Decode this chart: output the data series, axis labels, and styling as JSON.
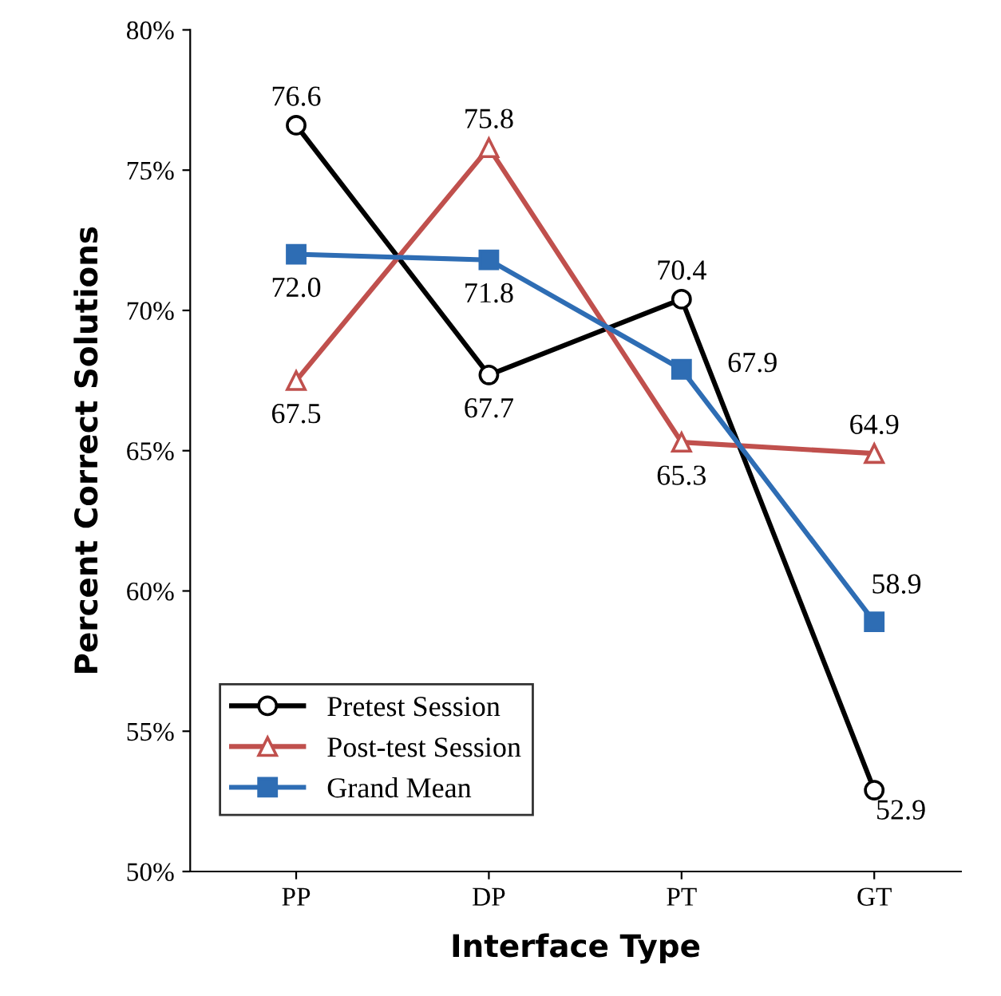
{
  "chart_data": {
    "type": "line",
    "xlabel": "Interface Type",
    "ylabel": "Percent Correct Solutions",
    "categories": [
      "PP",
      "DP",
      "PT",
      "GT"
    ],
    "series": [
      {
        "name": "Pretest Session",
        "color": "#000000",
        "marker": "circle",
        "values": [
          76.6,
          67.7,
          70.4,
          52.9
        ],
        "value_labels": [
          "76.6",
          "67.7",
          "70.4",
          "52.9"
        ]
      },
      {
        "name": "Post-test Session",
        "color": "#c0504d",
        "marker": "triangle",
        "values": [
          67.5,
          75.8,
          65.3,
          64.9
        ],
        "value_labels": [
          "67.5",
          "75.8",
          "65.3",
          "64.9"
        ]
      },
      {
        "name": "Grand Mean",
        "color": "#2e6db4",
        "marker": "square",
        "values": [
          72.0,
          71.8,
          67.9,
          58.9
        ],
        "value_labels": [
          "72.0",
          "71.8",
          "67.9",
          "58.9"
        ]
      }
    ],
    "ylim": [
      50,
      80
    ],
    "yticks": [
      {
        "value": 50,
        "label": "50%"
      },
      {
        "value": 55,
        "label": "55%"
      },
      {
        "value": 60,
        "label": "60%"
      },
      {
        "value": 65,
        "label": "65%"
      },
      {
        "value": 70,
        "label": "70%"
      },
      {
        "value": 75,
        "label": "75%"
      },
      {
        "value": 80,
        "label": "80%"
      }
    ],
    "grid": false,
    "legend": "bottom left"
  }
}
